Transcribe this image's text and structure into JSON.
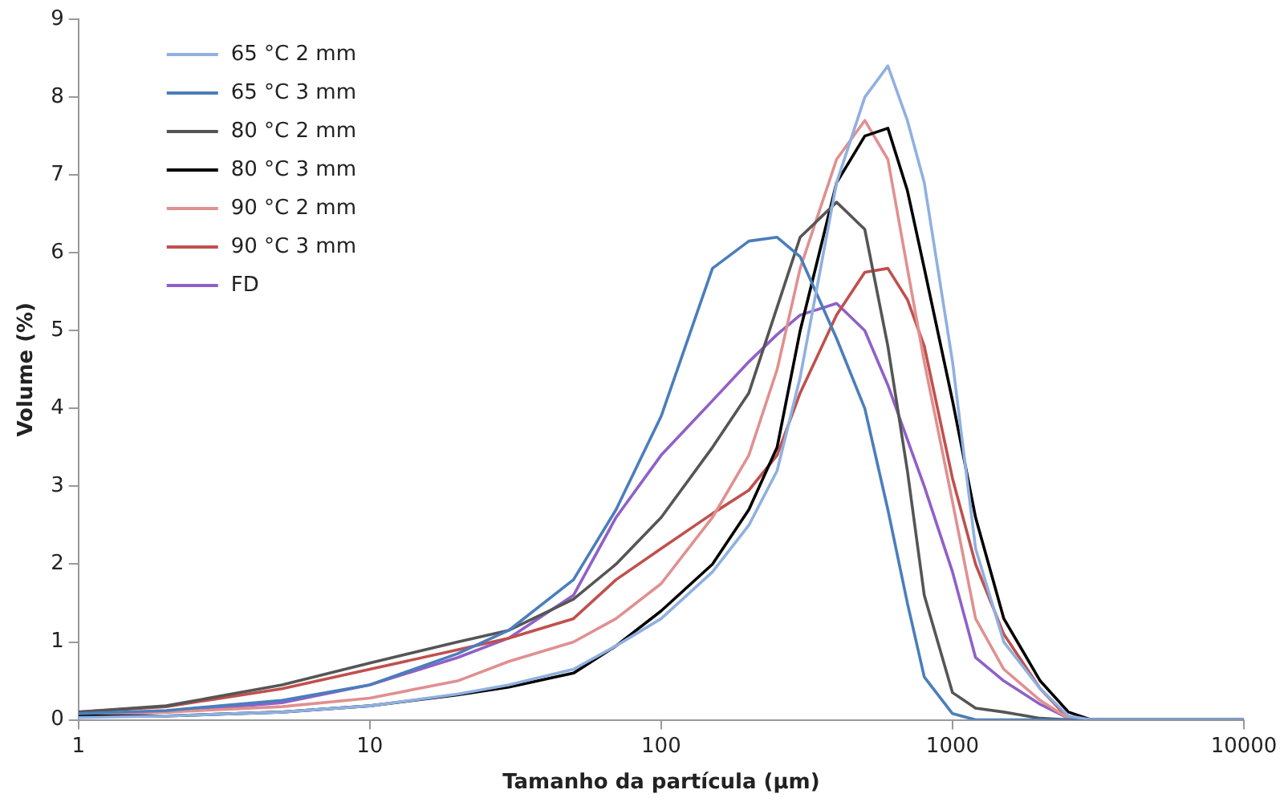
{
  "chart_data": {
    "type": "line",
    "xlabel": "Tamanho da partícula (µm)",
    "ylabel": "Volume (%)",
    "x": [
      1,
      2,
      5,
      10,
      20,
      30,
      50,
      70,
      100,
      150,
      200,
      250,
      300,
      400,
      500,
      600,
      700,
      800,
      1000,
      1200,
      1500,
      2000,
      2500,
      3000,
      10000
    ],
    "log": "x",
    "xlim": [
      1,
      10000
    ],
    "xticks": [
      1,
      10,
      100,
      1000,
      10000
    ],
    "ylim": [
      0,
      9
    ],
    "yticks": [
      0,
      1,
      2,
      3,
      4,
      5,
      6,
      7,
      8,
      9
    ],
    "grid": false,
    "legend": "top left",
    "marker": "none",
    "line_style": "solid",
    "series": [
      {
        "name": "65 °C 2 mm",
        "color": "#8fb0e0",
        "values": [
          0.03,
          0.05,
          0.1,
          0.18,
          0.33,
          0.45,
          0.65,
          0.95,
          1.3,
          1.9,
          2.5,
          3.2,
          4.4,
          6.9,
          8.0,
          8.4,
          7.7,
          6.9,
          4.6,
          2.2,
          1.0,
          0.4,
          0.05,
          0,
          0
        ]
      },
      {
        "name": "65 °C 3 mm",
        "color": "#4a7ebb",
        "values": [
          0.08,
          0.12,
          0.25,
          0.45,
          0.85,
          1.15,
          1.8,
          2.7,
          3.9,
          5.8,
          6.15,
          6.2,
          5.95,
          4.9,
          4.0,
          2.7,
          1.5,
          0.55,
          0.08,
          0,
          0,
          0,
          0,
          0,
          0
        ]
      },
      {
        "name": "80 °C 2 mm",
        "color": "#555555",
        "values": [
          0.1,
          0.18,
          0.45,
          0.73,
          1.0,
          1.15,
          1.55,
          2.0,
          2.6,
          3.5,
          4.2,
          5.3,
          6.2,
          6.65,
          6.3,
          4.8,
          3.2,
          1.6,
          0.35,
          0.15,
          0.1,
          0.02,
          0,
          0,
          0
        ]
      },
      {
        "name": "80 °C 3 mm",
        "color": "#000000",
        "values": [
          0.05,
          0.05,
          0.1,
          0.18,
          0.32,
          0.42,
          0.6,
          0.95,
          1.4,
          2.0,
          2.7,
          3.5,
          5.0,
          6.9,
          7.5,
          7.6,
          6.8,
          5.8,
          4.1,
          2.6,
          1.3,
          0.5,
          0.1,
          0,
          0
        ]
      },
      {
        "name": "90 °C 2 mm",
        "color": "#e09090",
        "values": [
          0.08,
          0.1,
          0.17,
          0.28,
          0.5,
          0.75,
          1.0,
          1.3,
          1.75,
          2.6,
          3.4,
          4.5,
          5.8,
          7.2,
          7.7,
          7.2,
          5.8,
          4.6,
          2.8,
          1.3,
          0.65,
          0.25,
          0.02,
          0,
          0
        ]
      },
      {
        "name": "90 °C 3 mm",
        "color": "#c0504d",
        "values": [
          0.1,
          0.17,
          0.4,
          0.65,
          0.9,
          1.05,
          1.3,
          1.8,
          2.2,
          2.65,
          2.95,
          3.4,
          4.2,
          5.2,
          5.75,
          5.8,
          5.4,
          4.8,
          3.1,
          2.0,
          1.1,
          0.4,
          0.02,
          0,
          0
        ]
      },
      {
        "name": "FD",
        "color": "#9060c8",
        "values": [
          0.05,
          0.1,
          0.22,
          0.45,
          0.8,
          1.05,
          1.6,
          2.6,
          3.4,
          4.1,
          4.6,
          4.95,
          5.2,
          5.35,
          5.0,
          4.3,
          3.6,
          3.0,
          1.9,
          0.8,
          0.5,
          0.2,
          0.02,
          0,
          0
        ]
      }
    ]
  }
}
